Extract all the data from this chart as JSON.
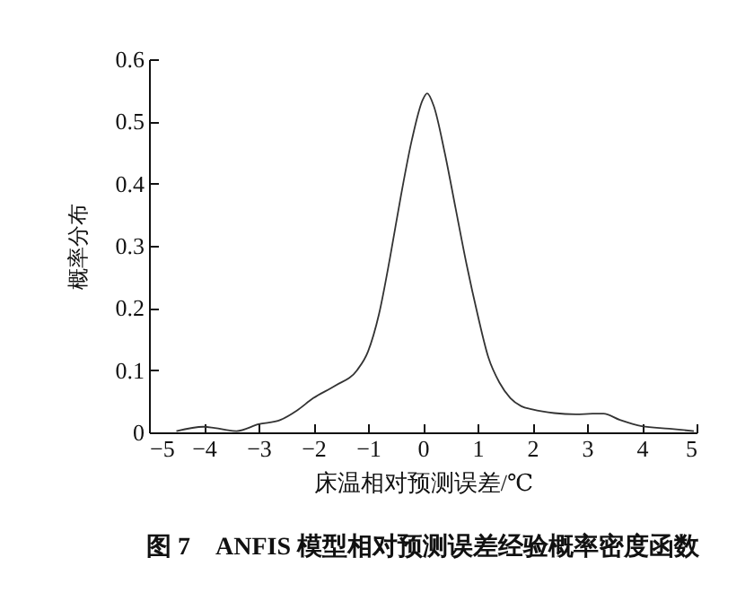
{
  "chart_data": {
    "type": "line",
    "title": "图 7　ANFIS 模型相对预测误差经验概率密度函数",
    "xlabel": "床温相对预测误差/℃",
    "ylabel": "概率分布",
    "x": [
      -4.5,
      -4,
      -3.8,
      -3.4,
      -3,
      -2.6,
      -2.3,
      -2,
      -1.6,
      -1.2,
      -1,
      -0.8,
      -0.6,
      -0.4,
      -0.2,
      0,
      0.08,
      0.2,
      0.4,
      0.6,
      0.8,
      1,
      1.2,
      1.4,
      1.6,
      1.8,
      2,
      2.4,
      2.8,
      3.1,
      3.3,
      3.6,
      4,
      4.5,
      4.95
    ],
    "series": [
      {
        "color": "#333333",
        "values": [
          0.002,
          0.009,
          0.007,
          0.002,
          0.013,
          0.02,
          0.035,
          0.055,
          0.075,
          0.1,
          0.13,
          0.19,
          0.28,
          0.38,
          0.47,
          0.535,
          0.545,
          0.525,
          0.45,
          0.36,
          0.27,
          0.19,
          0.12,
          0.08,
          0.055,
          0.042,
          0.037,
          0.031,
          0.029,
          0.03,
          0.03,
          0.02,
          0.01,
          0.006,
          0.002
        ]
      }
    ],
    "xlim": [
      -5,
      5
    ],
    "xticks": [
      {
        "value": -5,
        "label": "−5"
      },
      {
        "value": -4,
        "label": "−4"
      },
      {
        "value": -3,
        "label": "−3"
      },
      {
        "value": -2,
        "label": "−2"
      },
      {
        "value": -1,
        "label": "−1"
      },
      0,
      1,
      2,
      3,
      4,
      5
    ],
    "ylim": [
      0,
      0.6
    ],
    "yticks": [
      0,
      0.1,
      0.2,
      0.3,
      0.4,
      0.5,
      0.6
    ],
    "grid": false,
    "legend": false,
    "marker": "none",
    "line_style": "solid"
  }
}
